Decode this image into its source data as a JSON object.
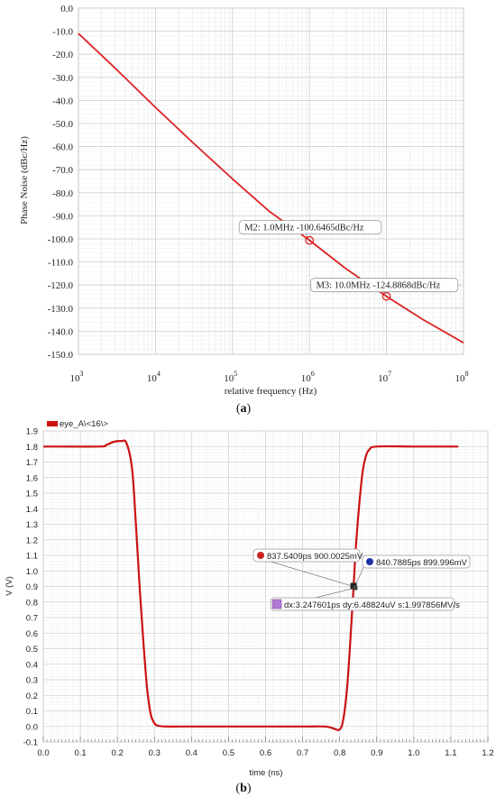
{
  "chart_data": [
    {
      "type": "line",
      "panel_label": "a",
      "xlabel": "relative frequency (Hz)",
      "ylabel": "Phase Noise (dBc/Hz)",
      "x_scale": "log",
      "xlim": [
        1000,
        100000000
      ],
      "ylim": [
        -150,
        0
      ],
      "x_ticks": [
        {
          "base": "10",
          "exp": "3"
        },
        {
          "base": "10",
          "exp": "4"
        },
        {
          "base": "10",
          "exp": "5"
        },
        {
          "base": "10",
          "exp": "6"
        },
        {
          "base": "10",
          "exp": "7"
        },
        {
          "base": "10",
          "exp": "8"
        }
      ],
      "y_ticks": [
        "0.0",
        "-10.0",
        "-20.0",
        "-30.0",
        "-40.0",
        "-50.0",
        "-60.0",
        "-70.0",
        "-80.0",
        "-90.0",
        "-100.0",
        "-110.0",
        "-120.0",
        "-130.0",
        "-140.0",
        "-150.0"
      ],
      "grid": true,
      "series": [
        {
          "color": "#dd2222",
          "x": [
            1000,
            3000,
            10000,
            30000,
            100000,
            300000,
            1000000,
            3000000,
            10000000,
            30000000,
            100000000
          ],
          "y": [
            -11,
            -26,
            -43,
            -58,
            -74,
            -88,
            -100.6,
            -113,
            -124.9,
            -135,
            -145
          ]
        }
      ],
      "markers": [
        {
          "label": "M2: 1.0MHz -100.6465dBc/Hz",
          "x": 1000000,
          "y": -100.6465
        },
        {
          "label": "M3: 10.0MHz -124.8868dBc/Hz",
          "x": 10000000,
          "y": -124.8868
        }
      ]
    },
    {
      "type": "line",
      "panel_label": "b",
      "xlabel": "time (ns)",
      "ylabel": "V (V)",
      "xlim": [
        0.0,
        1.2
      ],
      "ylim": [
        -0.1,
        1.9
      ],
      "x_ticks": [
        "0.0",
        "0.1",
        "0.2",
        "0.3",
        "0.4",
        "0.5",
        "0.6",
        "0.7",
        "0.8",
        "0.9",
        "1.0",
        "1.1",
        "1.2"
      ],
      "y_ticks": [
        "1.9",
        "1.8",
        "1.7",
        "1.6",
        "1.5",
        "1.4",
        "1.3",
        "1.2",
        "1.1",
        "1.0",
        "0.9",
        "0.8",
        "0.7",
        "0.6",
        "0.5",
        "0.4",
        "0.3",
        "0.2",
        "0.1",
        "0.0",
        "-0.1"
      ],
      "grid": true,
      "legend": {
        "label": "eye_A\\<16\\>",
        "color": "#cc1111",
        "position": "top-left"
      },
      "series": [
        {
          "name": "eye_A\\<16\\>",
          "color": "#cc1111",
          "x": [
            0.0,
            0.15,
            0.17,
            0.19,
            0.21,
            0.225,
            0.24,
            0.25,
            0.26,
            0.27,
            0.28,
            0.29,
            0.3,
            0.31,
            0.33,
            0.4,
            0.5,
            0.6,
            0.7,
            0.76,
            0.78,
            0.8,
            0.81,
            0.82,
            0.83,
            0.8375,
            0.845,
            0.86,
            0.87,
            0.88,
            0.9,
            1.0,
            1.12
          ],
          "y": [
            1.8,
            1.8,
            1.81,
            1.83,
            1.835,
            1.82,
            1.65,
            1.3,
            0.9,
            0.55,
            0.25,
            0.08,
            0.02,
            0.005,
            0.0,
            0.0,
            0.0,
            0.0,
            0.0,
            0.0,
            -0.01,
            -0.02,
            0.05,
            0.25,
            0.6,
            0.9,
            1.2,
            1.6,
            1.73,
            1.78,
            1.8,
            1.8,
            1.8
          ]
        }
      ],
      "markers": [
        {
          "label": "837.5409ps 900.0025mV",
          "x": 0.8375409,
          "y": 0.9000025,
          "color": "#cc2222"
        },
        {
          "label": "840.7885ps 899.996mV",
          "x": 0.8407885,
          "y": 0.899996,
          "color": "#2233aa"
        }
      ],
      "delta_label": "dx:3.247601ps dy:6.48824uV s:1.997856MV/s"
    }
  ],
  "captions": {
    "a": "(a)",
    "b": "(b)"
  }
}
